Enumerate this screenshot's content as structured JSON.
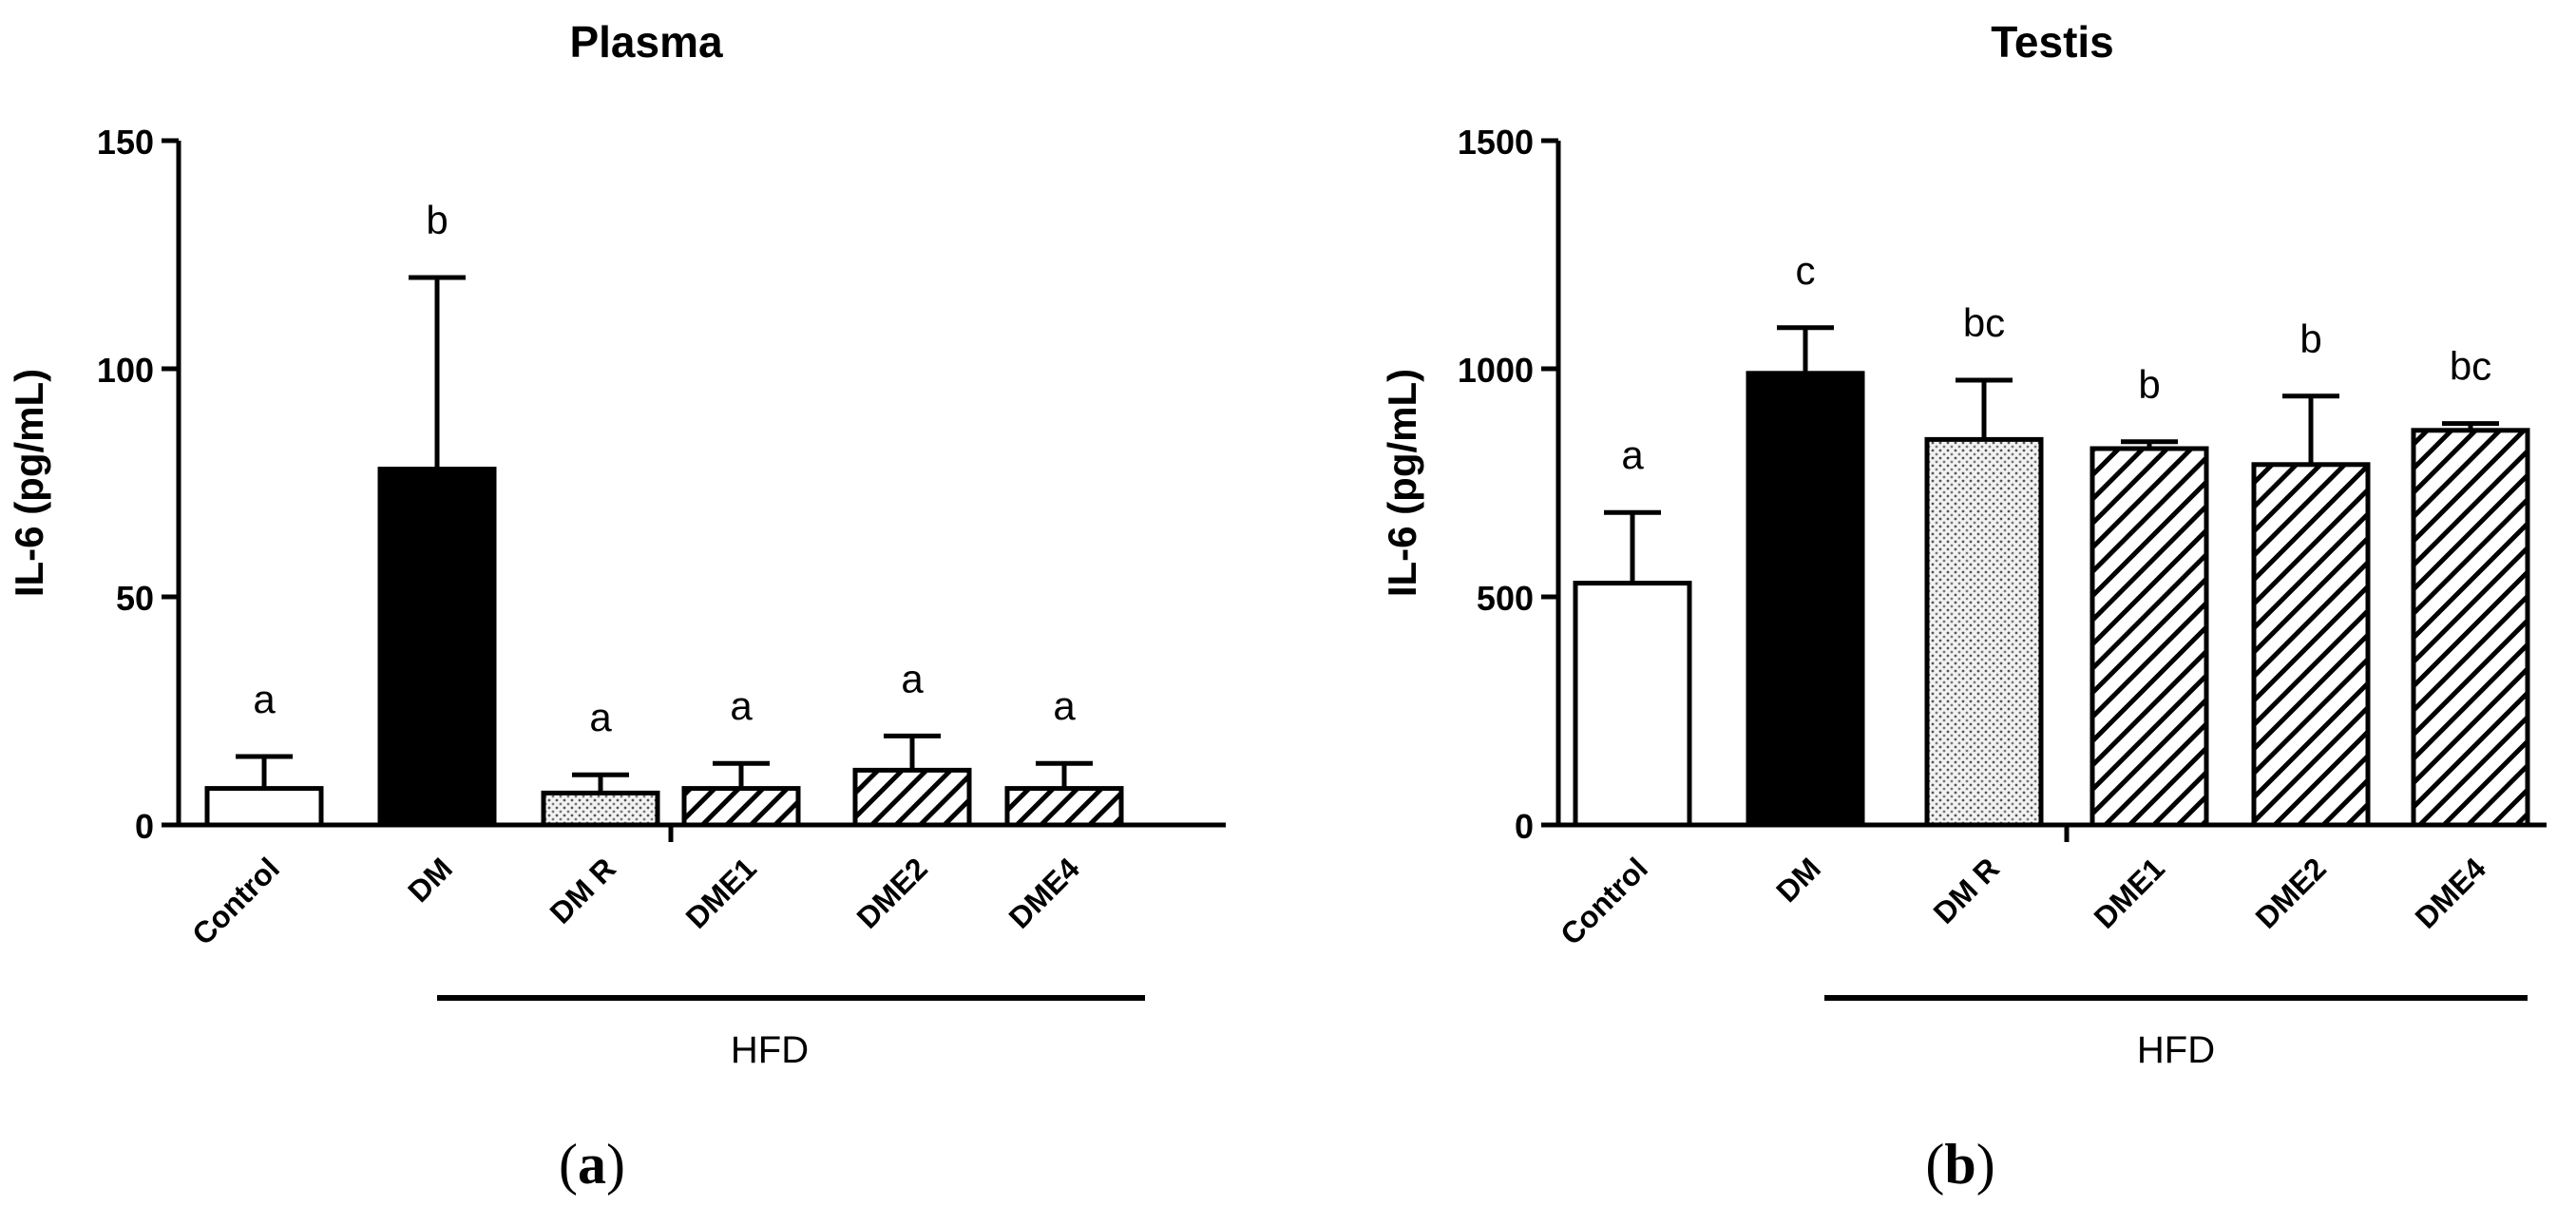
{
  "chart_data": [
    {
      "type": "bar",
      "title": "Plasma",
      "ylabel": "IL-6 (pg/mL)",
      "xlabel": "",
      "ylim": [
        0,
        150
      ],
      "yticks": [
        "0",
        "50",
        "100",
        "150"
      ],
      "categories": [
        "Control",
        "DM",
        "DM R",
        "DME1",
        "DME2",
        "DME4"
      ],
      "values": [
        8,
        78,
        7,
        8,
        12,
        8
      ],
      "errors": [
        7,
        42,
        4,
        5.5,
        7.5,
        5.5
      ],
      "significance": [
        "a",
        "b",
        "a",
        "a",
        "a",
        "a"
      ],
      "patterns": [
        "white",
        "black",
        "dots",
        "hatch",
        "hatch",
        "hatch"
      ],
      "group_label": "HFD",
      "panel_label": "(a)",
      "panel_letter": "a"
    },
    {
      "type": "bar",
      "title": "Testis",
      "ylabel": "IL-6 (pg/mL)",
      "xlabel": "",
      "ylim": [
        0,
        1500
      ],
      "yticks": [
        "0",
        "500",
        "1000",
        "1500"
      ],
      "categories": [
        "Control",
        "DM",
        "DM R",
        "DME1",
        "DME2",
        "DME4"
      ],
      "values": [
        530,
        990,
        845,
        825,
        790,
        865
      ],
      "errors": [
        155,
        100,
        130,
        15,
        150,
        15
      ],
      "significance": [
        "a",
        "c",
        "bc",
        "b",
        "b",
        "bc"
      ],
      "patterns": [
        "white",
        "black",
        "dots",
        "hatch",
        "hatch",
        "hatch"
      ],
      "group_label": "HFD",
      "panel_label": "(b)",
      "panel_letter": "b"
    }
  ]
}
